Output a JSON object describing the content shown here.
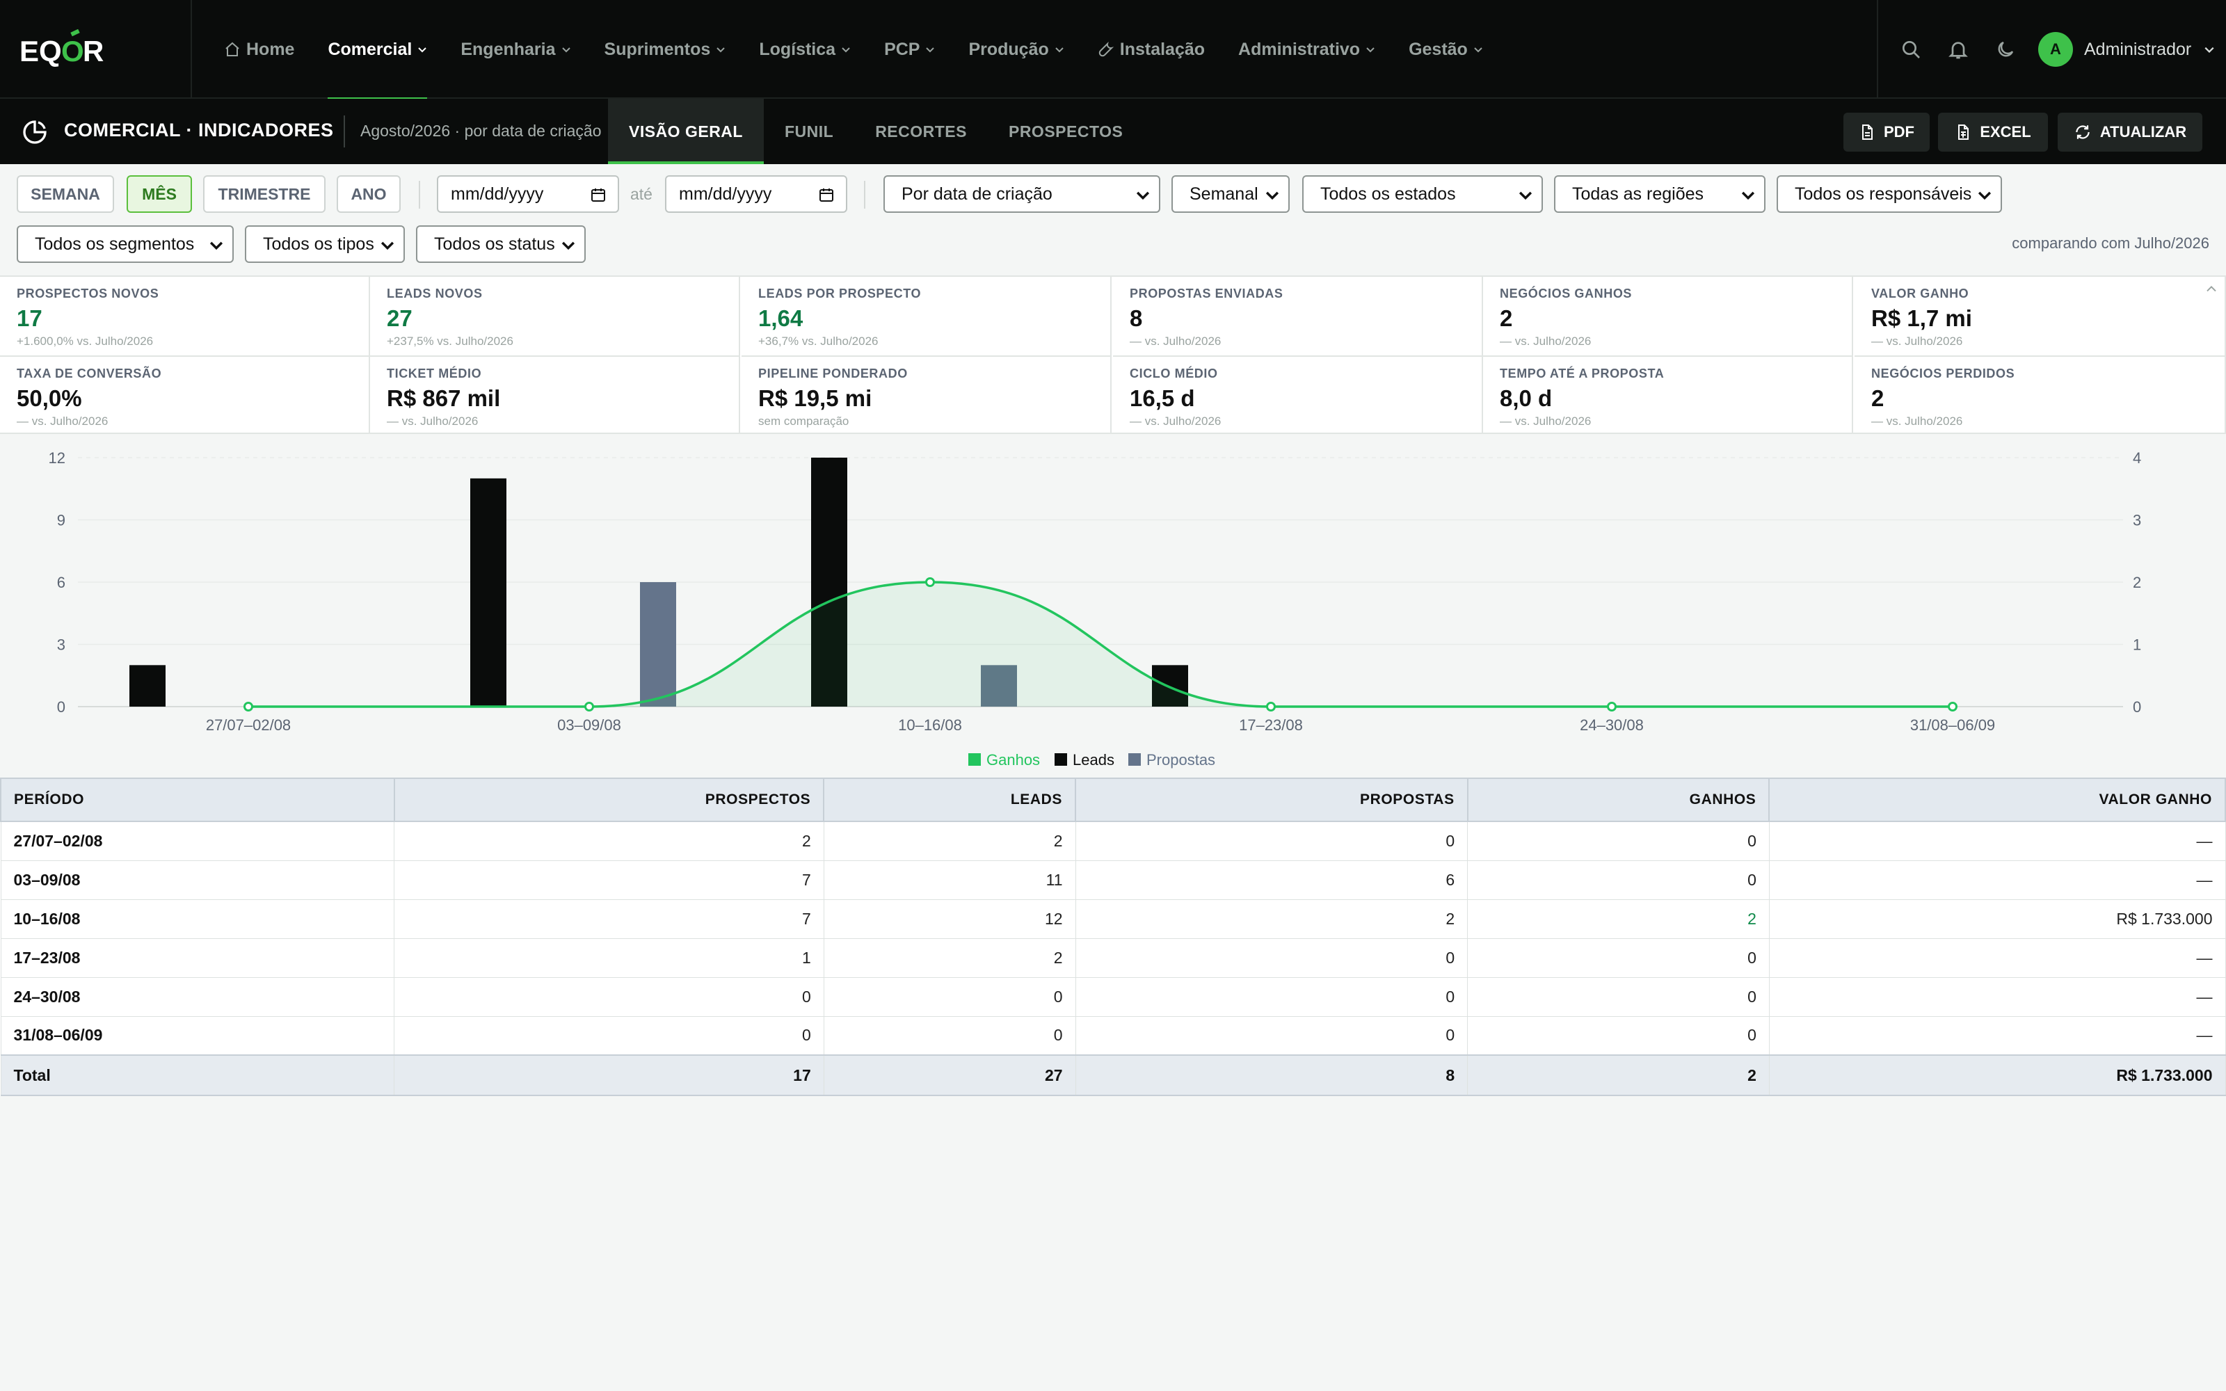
{
  "app": {
    "logo": "EQÓR"
  },
  "nav": {
    "items": [
      {
        "label": "Home",
        "icon": "home-icon"
      },
      {
        "label": "Comercial",
        "dropdown": true,
        "active": true
      },
      {
        "label": "Engenharia",
        "dropdown": true
      },
      {
        "label": "Suprimentos",
        "dropdown": true
      },
      {
        "label": "Logística",
        "dropdown": true
      },
      {
        "label": "PCP",
        "dropdown": true
      },
      {
        "label": "Produção",
        "dropdown": true
      },
      {
        "label": "Instalação",
        "icon": "wrench-icon"
      },
      {
        "label": "Administrativo",
        "dropdown": true
      },
      {
        "label": "Gestão",
        "dropdown": true
      }
    ],
    "user": {
      "initial": "A",
      "name": "Administrador"
    }
  },
  "subheader": {
    "title": "COMERCIAL · INDICADORES",
    "period": "Agosto/2026 · por data de criação",
    "tabs": [
      "VISÃO GERAL",
      "FUNIL",
      "RECORTES",
      "PROSPECTOS"
    ],
    "active_tab": "VISÃO GERAL",
    "actions": {
      "pdf": "PDF",
      "excel": "EXCEL",
      "refresh": "ATUALIZAR"
    }
  },
  "filters": {
    "period_chips": [
      "SEMANA",
      "MÊS",
      "TRIMESTRE",
      "ANO"
    ],
    "active_chip": "MÊS",
    "date_from_placeholder": "mm/dd/yyyy",
    "date_to_placeholder": "mm/dd/yyyy",
    "date_sep": "até",
    "basis": "Por data de criação",
    "granularity": "Semanal",
    "state": "Todos os estados",
    "region": "Todas as regiões",
    "owner": "Todos os responsáveis",
    "segment": "Todos os segmentos",
    "type": "Todos os tipos",
    "status": "Todos os status",
    "comparison": "comparando com Julho/2026"
  },
  "kpis": [
    {
      "label": "PROSPECTOS NOVOS",
      "value": "17",
      "sub": "+1.600,0% vs. Julho/2026",
      "highlight": true
    },
    {
      "label": "LEADS NOVOS",
      "value": "27",
      "sub": "+237,5% vs. Julho/2026",
      "highlight": true
    },
    {
      "label": "LEADS POR PROSPECTO",
      "value": "1,64",
      "sub": "+36,7% vs. Julho/2026",
      "highlight": true
    },
    {
      "label": "PROPOSTAS ENVIADAS",
      "value": "8",
      "sub": "— vs. Julho/2026"
    },
    {
      "label": "NEGÓCIOS GANHOS",
      "value": "2",
      "sub": "— vs. Julho/2026"
    },
    {
      "label": "VALOR GANHO",
      "value": "R$ 1,7 mi",
      "sub": "— vs. Julho/2026"
    },
    {
      "label": "TAXA DE CONVERSÃO",
      "value": "50,0%",
      "sub": "— vs. Julho/2026"
    },
    {
      "label": "TICKET MÉDIO",
      "value": "R$ 867 mil",
      "sub": "— vs. Julho/2026"
    },
    {
      "label": "PIPELINE PONDERADO",
      "value": "R$ 19,5 mi",
      "sub": "sem comparação"
    },
    {
      "label": "CICLO MÉDIO",
      "value": "16,5 d",
      "sub": "— vs. Julho/2026"
    },
    {
      "label": "TEMPO ATÉ A PROPOSTA",
      "value": "8,0 d",
      "sub": "— vs. Julho/2026"
    },
    {
      "label": "NEGÓCIOS PERDIDOS",
      "value": "2",
      "sub": "— vs. Julho/2026"
    }
  ],
  "chart_data": {
    "type": "bar",
    "categories": [
      "27/07–02/08",
      "03–09/08",
      "10–16/08",
      "17–23/08",
      "24–30/08",
      "31/08–06/09"
    ],
    "series": [
      {
        "name": "Leads",
        "type": "bar",
        "axis": "left",
        "color": "#0a0c0b",
        "values": [
          2,
          11,
          12,
          2,
          0,
          0
        ]
      },
      {
        "name": "Propostas",
        "type": "bar",
        "axis": "left",
        "color": "#64748b",
        "values": [
          0,
          6,
          2,
          0,
          0,
          0
        ]
      },
      {
        "name": "Ganhos",
        "type": "line",
        "axis": "right",
        "color": "#22c55e",
        "values": [
          0,
          0,
          2,
          0,
          0,
          0
        ]
      }
    ],
    "left_ticks": [
      0,
      3,
      6,
      9,
      12
    ],
    "right_ticks": [
      0,
      1,
      2,
      3,
      4
    ],
    "ylim": [
      0,
      12
    ],
    "y2lim": [
      0,
      4
    ],
    "legend": [
      "Ganhos",
      "Leads",
      "Propostas"
    ],
    "legend_position": "bottom"
  },
  "table": {
    "headers": [
      "PERÍODO",
      "PROSPECTOS",
      "LEADS",
      "PROPOSTAS",
      "GANHOS",
      "VALOR GANHO"
    ],
    "rows": [
      [
        "27/07–02/08",
        "2",
        "2",
        "0",
        "0",
        "—"
      ],
      [
        "03–09/08",
        "7",
        "11",
        "6",
        "0",
        "—"
      ],
      [
        "10–16/08",
        "7",
        "12",
        "2",
        "2",
        "R$ 1.733.000"
      ],
      [
        "17–23/08",
        "1",
        "2",
        "0",
        "0",
        "—"
      ],
      [
        "24–30/08",
        "0",
        "0",
        "0",
        "0",
        "—"
      ],
      [
        "31/08–06/09",
        "0",
        "0",
        "0",
        "0",
        "—"
      ]
    ],
    "total": [
      "Total",
      "17",
      "27",
      "8",
      "2",
      "R$ 1.733.000"
    ]
  },
  "colors": {
    "accent": "#3ec14a",
    "dark": "#0a0c0b",
    "slate": "#64748b",
    "kpi_green": "#0f7a44"
  }
}
